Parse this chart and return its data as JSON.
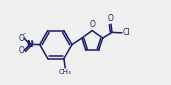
{
  "bg_color": "#f0f0f0",
  "line_color": "#1a1a6a",
  "text_color": "#1a1a6a",
  "bond_lw": 1.1,
  "figsize": [
    1.71,
    0.85
  ],
  "dpi": 100,
  "xlim": [
    0.0,
    1.71
  ],
  "ylim": [
    0.0,
    0.85
  ]
}
